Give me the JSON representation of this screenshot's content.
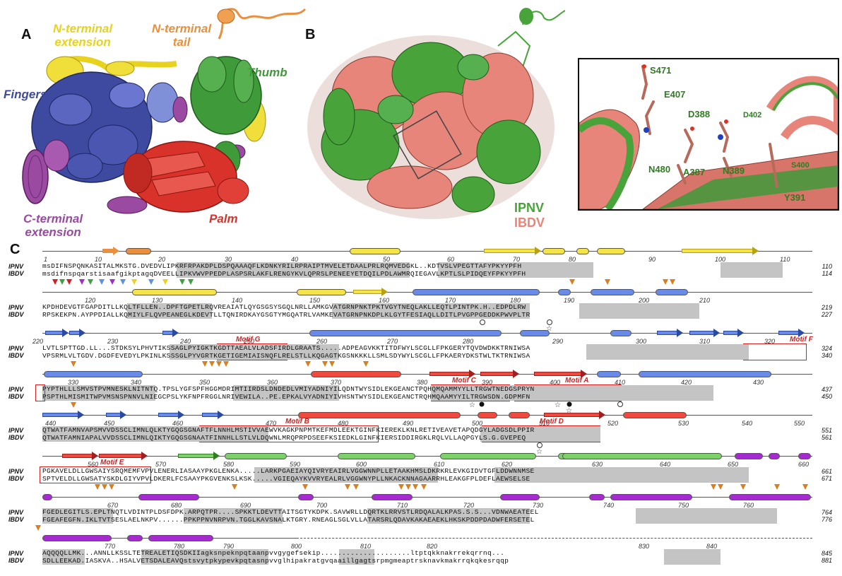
{
  "panels": {
    "a": {
      "letter": "A"
    },
    "b": {
      "letter": "B"
    },
    "c": {
      "letter": "C"
    }
  },
  "domains": {
    "n_terminal_extension": "N-terminal\nextension",
    "n_terminal_tail": "N-terminal\ntail",
    "fingers": "Fingers",
    "thumb": "Thumb",
    "c_terminal_extension": "C-terminal\nextension",
    "palm": "Palm"
  },
  "domain_colors": {
    "n_terminal_extension": "#e8d21e",
    "n_terminal_tail": "#e89040",
    "fingers": "#3d4aa0",
    "thumb": "#3f9a3a",
    "c_terminal_extension": "#9a4aa0",
    "palm": "#d8322a"
  },
  "legend": {
    "ipnv": "IPNV",
    "ibdv": "IBDV",
    "ipnv_color": "#47a33a",
    "ibdv_color": "#e8857a"
  },
  "inset_residues": [
    "S471",
    "E407",
    "D388",
    "D402",
    "N480",
    "A387",
    "N389",
    "S400",
    "Y391"
  ],
  "alignment": {
    "species": [
      "IPNV",
      "IBDV"
    ],
    "rows": [
      {
        "numbers": [
          "1",
          "10",
          "20",
          "30",
          "40",
          "50",
          "60",
          "70",
          "80",
          "90",
          "100",
          "110"
        ],
        "ipnv": "msDIFNSPQNKASITALMKSTG.DVEDVLIPKRFRPAKDPLDSPQAAAQFLKDNKYRILRPRAIPTMVELETDAALPRLRQMVEDGKL..KDTVSLVPEGTTAFYPKYYPFH",
        "ibdv": "msdifnspqarstisaafgikptagqDVEELLIPKVWVPPEDPLASPSRLAKFLRENGYKVLQPRSLPENEEYETDQILPDLAWMRQIEGAVLKPTLSLPIDQEYFPKYYPFH",
        "end": [
          "110",
          "114"
        ]
      },
      {
        "numbers": [
          "120",
          "130",
          "140",
          "150",
          "160",
          "170",
          "180",
          "190",
          "200",
          "210"
        ],
        "ipnv": "KPDHDEVGTFGAPDITLLKQLTFLLEN..DPFTGPETLRQVREAIATLQYGSGSYSGQLNRLLAMKGVATGRNPNKTPKTVGYTNEQLAKLLEQTLPINTPK.H..EDPDLRW",
        "ibdv": "RPSKEKPN.AYPPDIALLKQMIYLFLQVPEANEGLKDEVTLLTQNIRDKAYGSGTYMGQATRLVAMKEVATGRNPNKDPLKLGYTFESIAQLLDITLPVGPPGEDDKPWVPLTR",
        "end": [
          "219",
          "227"
        ]
      },
      {
        "numbers": [
          "220",
          "230",
          "240",
          "250",
          "260",
          "270",
          "280",
          "290",
          "300",
          "310",
          "320"
        ],
        "ipnv": "LVTLSPTTGD.LL...STDKSYLPHVTIKSSAGLPYIGKTKGDTTAEALVLADSFIRDLGRAATS.....ADPEAGVKKTITDFWYLSCGLLFPKGERYTQVDWDKKTRNIWSA",
        "ibdv": "VPSRMLVLTGDV.DGDFEVEDYLPKINLKSSSGLPYVGRTKGETIGEMIAISNQFLRELSTLLKQGAGTKGSNKKKLLSMLSDYWYLSCGLLFPKAERYDKSTWLTKTRNIWSA",
        "end": [
          "324",
          "340"
        ]
      },
      {
        "numbers": [
          "330",
          "340",
          "350",
          "360",
          "370",
          "380",
          "390",
          "400",
          "410",
          "420",
          "430"
        ],
        "ipnv": "PYPTHLLLSMVSTPVMNESKLNITNTQ.TPSLYGFSPFHGGMDRIMTIIRDSLDNDEDLVMIYADNIYILQDNTWYSIDLEKGEANCTPQHQMQAMMYYLLTRGWTNEDGSPRYN",
        "ibdv": "PSPTHLMISMITWPVMSNSPNNVLNIEGCPSLYKFNPFRGGLNRIVEWILA..PE.EPKALVYADNIYIVHSNTWYSIDLEKGEANCTRQHMQAAMYYILTRGWSDN.GDPMFN",
        "end": [
          "437",
          "450"
        ]
      },
      {
        "numbers": [
          "440",
          "450",
          "460",
          "470",
          "480",
          "490",
          "500",
          "510",
          "520",
          "530",
          "540",
          "550"
        ],
        "ipnv": "QTWATFAMNVAPSMVVDSSCLIMNLQLKTYGQGSGNAFTFLNNHLMSTIVVAEWVKAGKPNPMTKEFMDLEEKTGINFKIEREKLKNLRETIVEAVETAPQDGYLADGSDLPPIR",
        "ibdv": "QTWATFAMNIAPALVVDSSCLIMNLQIKTYGQGSGNAATFINNHLLSTLVLDQWNLMRQPRPDSEEFKSIEDKLGINFKIERSIDDIRGKLRQLVLLAQPGYLS.G.GVEPEQ",
        "end": [
          "551",
          "561"
        ]
      },
      {
        "numbers": [
          "560",
          "570",
          "580",
          "590",
          "600",
          "610",
          "620",
          "630",
          "640",
          "650",
          "660"
        ],
        "ipnv": "PGKAVELDLLGWSAIYSRQMEMFVPVLENERLIASAAYPKGLENKA.....LARKPGAEIAYQIVRYEAIRLVGGWNNPLLETAAKHMSLDKRKRLEVKGIDVTGFLDDWNNMSE",
        "ibdv": "SPTVELDLLGWSATYSKDLGIYVPVLDKERLFCSAAYPKGVENKSLKSK.....VGIEQAYKVVRYEALRLVGGWNYPLLNKACKNNAGAARRHLEAKGFPLDEFLAEWSELSE",
        "end": [
          "661",
          "671"
        ]
      },
      {
        "numbers": [
          "670",
          "680",
          "690",
          "700",
          "710",
          "720",
          "730",
          "740",
          "750",
          "760"
        ],
        "ipnv": "FGEDLEGITLS.EPLTNQTLVDINTPLDSFDPK.ARPQTPR....SPKKTLDEVTTAITSGTYKDPK.SAVWRLLDQRTKLRRVSTLRDQALALKPAS.S.S...VDNWAEATEEL",
        "ibdv": "FGEAFEGFN.IKLTVTSESLAELNKPV......PPKPPNVNRPVN.TGGLKAVSNALKTGRY.RNEAGLSGLVLLATARSRLQDAVKAKAEAEKLHKSKPDDPDADWFERSETEL",
        "end": [
          "764",
          "776"
        ]
      },
      {
        "numbers": [
          "770",
          "780",
          "790",
          "800",
          "810",
          "820",
          "830",
          "840"
        ],
        "ipnv": "AQQQQLLMK...ANNLLKSSLTETREALETIQSDKIIagksnpeknpqtaanpvvgygefsekip.....................ltptqkknakrrekqrrnq...",
        "ibdv": "SDLLEEKAD.IASKVA..HSALVETSDALEAVQstsvytpkypevkpqtasnpvvglhipakratgvqaaillgagtsrpmgmeaptrsknavkmakrrqkqkesrqqp",
        "end": [
          "845",
          "881"
        ]
      }
    ],
    "motifs": [
      "Motif G",
      "Motif F",
      "Motif C",
      "Motif A",
      "Motif B",
      "Motif D",
      "Motif E"
    ]
  }
}
